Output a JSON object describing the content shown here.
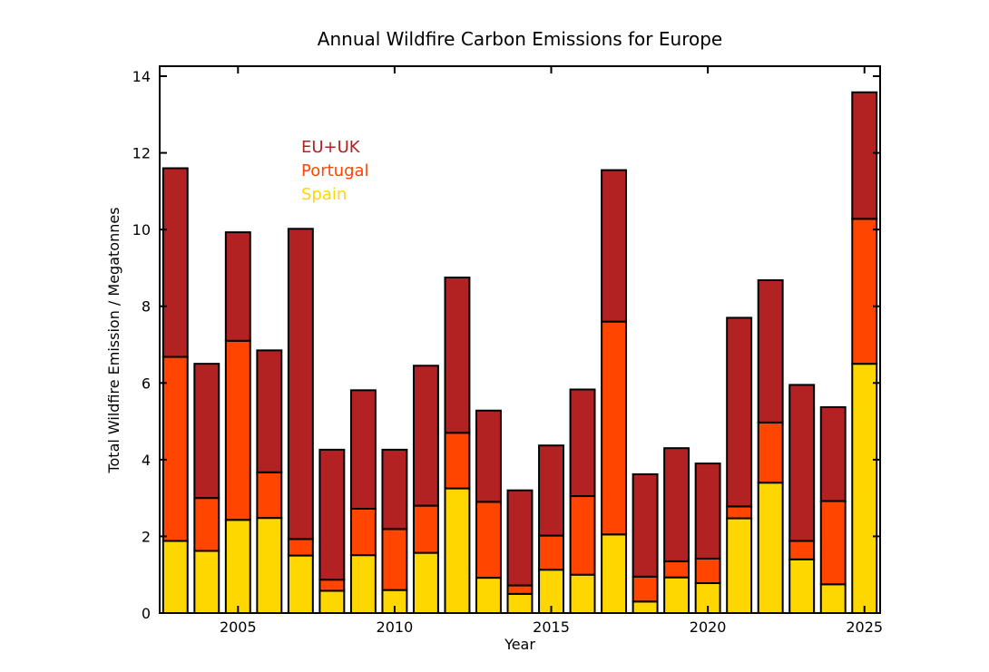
{
  "chart_data": {
    "type": "bar",
    "stacked": true,
    "title": "Annual Wildfire Carbon Emissions for Europe",
    "xlabel": "Year",
    "ylabel": "Total Wildfire Emission / Megatonnes",
    "ylim": [
      0,
      14
    ],
    "xlim": [
      2002.5,
      2025.5
    ],
    "yticks": [
      0,
      2,
      4,
      6,
      8,
      10,
      12,
      14
    ],
    "xticks": [
      2005,
      2010,
      2015,
      2020,
      2025
    ],
    "grid": false,
    "legend_position": "top-left",
    "categories": [
      2003,
      2004,
      2005,
      2006,
      2007,
      2008,
      2009,
      2010,
      2011,
      2012,
      2013,
      2014,
      2015,
      2016,
      2017,
      2018,
      2019,
      2020,
      2021,
      2022,
      2023,
      2024,
      2025
    ],
    "series": [
      {
        "name": "Spain",
        "color": "#FFD700",
        "values": [
          1.88,
          1.62,
          2.43,
          2.48,
          1.5,
          0.58,
          1.51,
          0.6,
          1.57,
          3.25,
          0.92,
          0.5,
          1.13,
          1.0,
          2.05,
          0.3,
          0.93,
          0.78,
          2.47,
          3.4,
          1.4,
          0.75,
          6.5
        ]
      },
      {
        "name": "Portugal",
        "color": "#FF4500",
        "values": [
          4.8,
          1.38,
          4.67,
          1.19,
          0.43,
          0.29,
          1.21,
          1.59,
          1.23,
          1.45,
          1.98,
          0.22,
          0.89,
          2.05,
          5.55,
          0.65,
          0.42,
          0.64,
          0.31,
          1.57,
          0.48,
          2.17,
          3.78
        ]
      },
      {
        "name": "EU+UK",
        "color": "#B22222",
        "values": [
          4.92,
          3.5,
          2.83,
          3.18,
          8.09,
          3.39,
          3.09,
          2.07,
          3.65,
          4.05,
          2.38,
          2.48,
          2.35,
          2.78,
          3.95,
          2.67,
          2.95,
          2.48,
          4.92,
          3.71,
          4.07,
          2.45,
          3.3
        ]
      }
    ]
  }
}
